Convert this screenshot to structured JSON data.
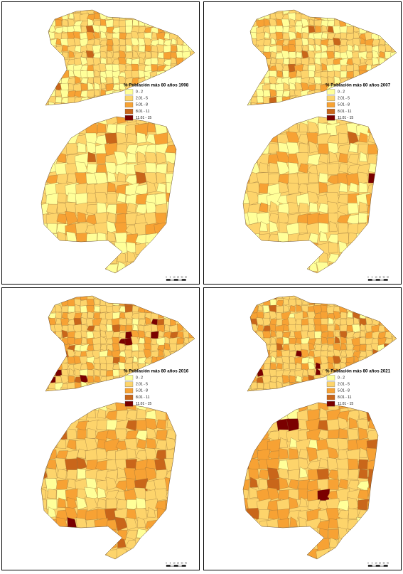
{
  "panels": [
    {
      "legend_title": "% Población más 80 años 1998",
      "legend": [
        {
          "label": "0 - 2",
          "color": "#ffff99"
        },
        {
          "label": "2.01 - 5",
          "color": "#fdd46b"
        },
        {
          "label": "5.01 - 8",
          "color": "#f7a234"
        },
        {
          "label": "8.01 - 11",
          "color": "#c9661a"
        },
        {
          "label": "11.01 - 15",
          "color": "#7a0000"
        }
      ],
      "scale_labels": [
        "0",
        "5",
        "10",
        "20",
        "30",
        "40"
      ]
    },
    {
      "legend_title": "% Población más 80 años 2007",
      "legend": [
        {
          "label": "0 - 2",
          "color": "#ffff99"
        },
        {
          "label": "2.01 - 5",
          "color": "#fdd46b"
        },
        {
          "label": "5.01 - 8",
          "color": "#f7a234"
        },
        {
          "label": "8.01 - 11",
          "color": "#c9661a"
        },
        {
          "label": "11.01 - 15",
          "color": "#7a0000"
        }
      ],
      "scale_labels": [
        "0",
        "5",
        "10",
        "20",
        "30",
        "40"
      ]
    },
    {
      "legend_title": "% Población más 80 años 2016",
      "legend": [
        {
          "label": "0 - 2",
          "color": "#ffff99"
        },
        {
          "label": "2.01 - 5",
          "color": "#fdd46b"
        },
        {
          "label": "5.01 - 8",
          "color": "#f7a234"
        },
        {
          "label": "8.01 - 11",
          "color": "#c9661a"
        },
        {
          "label": "11.01 - 15",
          "color": "#7a0000"
        }
      ],
      "scale_labels": [
        "0",
        "5",
        "10",
        "20",
        "30",
        "40"
      ]
    },
    {
      "legend_title": "% Población más 80 años 2021",
      "legend": [
        {
          "label": "0 - 2",
          "color": "#ffff99"
        },
        {
          "label": "2.01 - 5",
          "color": "#fdd46b"
        },
        {
          "label": "5.01 - 8",
          "color": "#f7a234"
        },
        {
          "label": "8.01 - 11",
          "color": "#c9661a"
        },
        {
          "label": "11.01 - 15",
          "color": "#7a0000"
        }
      ],
      "scale_labels": [
        "0",
        "5",
        "10",
        "20",
        "30",
        "40"
      ]
    }
  ]
}
